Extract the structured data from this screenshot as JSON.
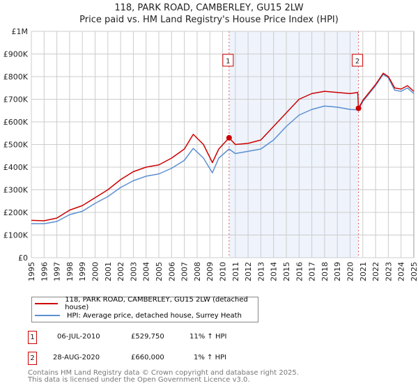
{
  "title": "118, PARK ROAD, CAMBERLEY, GU15 2LW",
  "subtitle": "Price paid vs. HM Land Registry's House Price Index (HPI)",
  "chart_data": {
    "type": "line",
    "title": "118, PARK ROAD, CAMBERLEY, GU15 2LW",
    "subtitle": "Price paid vs. HM Land Registry's House Price Index (HPI)",
    "xlim": [
      1995,
      2025
    ],
    "ylim": [
      0,
      1000000
    ],
    "grid": true,
    "x_ticks": [
      "1995",
      "1996",
      "1997",
      "1998",
      "1999",
      "2000",
      "2001",
      "2002",
      "2003",
      "2004",
      "2005",
      "2006",
      "2007",
      "2008",
      "2009",
      "2010",
      "2011",
      "2012",
      "2013",
      "2014",
      "2015",
      "2016",
      "2017",
      "2018",
      "2019",
      "2020",
      "2021",
      "2022",
      "2023",
      "2024",
      "2025"
    ],
    "y_ticks": [
      {
        "v": 0,
        "label": "£0"
      },
      {
        "v": 100000,
        "label": "£100K"
      },
      {
        "v": 200000,
        "label": "£200K"
      },
      {
        "v": 300000,
        "label": "£300K"
      },
      {
        "v": 400000,
        "label": "£400K"
      },
      {
        "v": 500000,
        "label": "£500K"
      },
      {
        "v": 600000,
        "label": "£600K"
      },
      {
        "v": 700000,
        "label": "£700K"
      },
      {
        "v": 800000,
        "label": "£800K"
      },
      {
        "v": 900000,
        "label": "£900K"
      },
      {
        "v": 1000000,
        "label": "£1M"
      }
    ],
    "series": [
      {
        "name": "118, PARK ROAD, CAMBERLEY, GU15 2LW (detached house)",
        "color": "#cc0000",
        "x": [
          1995,
          1996,
          1997,
          1998,
          1999,
          2000,
          2001,
          2002,
          2003,
          2004,
          2005,
          2006,
          2007,
          2007.7,
          2008.5,
          2009.2,
          2009.7,
          2010.51,
          2011,
          2012,
          2013,
          2014,
          2015,
          2016,
          2017,
          2018,
          2019,
          2020,
          2020.6,
          2020.66,
          2021,
          2022,
          2022.6,
          2023,
          2023.5,
          2024,
          2024.5,
          2025
        ],
        "y": [
          165000,
          163000,
          175000,
          210000,
          230000,
          265000,
          300000,
          345000,
          380000,
          400000,
          410000,
          440000,
          480000,
          545000,
          500000,
          420000,
          480000,
          529750,
          500000,
          505000,
          520000,
          580000,
          640000,
          700000,
          725000,
          735000,
          730000,
          725000,
          730000,
          660000,
          695000,
          765000,
          815000,
          800000,
          750000,
          745000,
          760000,
          735000
        ]
      },
      {
        "name": "HPI: Average price, detached house, Surrey Heath",
        "color": "#5b8fd0",
        "x": [
          1995,
          1996,
          1997,
          1998,
          1999,
          2000,
          2001,
          2002,
          2003,
          2004,
          2005,
          2006,
          2007,
          2007.7,
          2008.5,
          2009.2,
          2009.7,
          2010.51,
          2011,
          2012,
          2013,
          2014,
          2015,
          2016,
          2017,
          2018,
          2019,
          2020,
          2020.66,
          2021,
          2022,
          2022.6,
          2023,
          2023.5,
          2024,
          2024.5,
          2025
        ],
        "y": [
          150000,
          150000,
          160000,
          190000,
          205000,
          240000,
          270000,
          310000,
          340000,
          360000,
          370000,
          395000,
          430000,
          483000,
          440000,
          375000,
          440000,
          480000,
          460000,
          470000,
          480000,
          520000,
          580000,
          630000,
          655000,
          670000,
          665000,
          655000,
          653000,
          690000,
          760000,
          810000,
          795000,
          740000,
          735000,
          750000,
          725000
        ]
      }
    ],
    "sales": [
      {
        "id": "1",
        "x": 2010.51,
        "y": 529750,
        "date": "06-JUL-2010",
        "price": "£529,750",
        "hpi": "11% ↑ HPI"
      },
      {
        "id": "2",
        "x": 2020.66,
        "y": 660000,
        "date": "28-AUG-2020",
        "price": "£660,000",
        "hpi": "1% ↑ HPI"
      }
    ],
    "legend": "bottom"
  },
  "footer": [
    "Contains HM Land Registry data © Crown copyright and database right 2025.",
    "This data is licensed under the Open Government Licence v3.0."
  ]
}
